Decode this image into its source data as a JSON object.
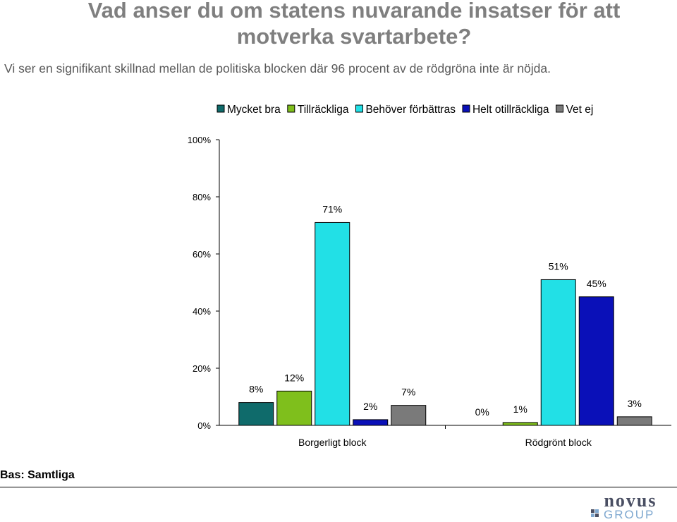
{
  "page": {
    "title": "Vad anser du om statens nuvarande insatser för att motverka svartarbete?",
    "subtitle": "Vi ser en signifikant skillnad mellan de politiska blocken där 96 procent av de rödgröna inte är nöjda.",
    "base": "Bas: Samtliga",
    "logo_text": [
      "novus",
      "GROUP"
    ]
  },
  "colors": {
    "Mycket bra": "#0f6b6b",
    "Tillräckliga": "#7fbf1c",
    "Behöver förbättras": "#22e0e6",
    "Helt otillräckliga": "#0a10b8",
    "Vet ej": "#7a7a7a"
  },
  "chart_data": {
    "type": "bar",
    "categories": [
      "Borgerligt block",
      "Rödgrönt block"
    ],
    "series": [
      {
        "name": "Mycket bra",
        "values": [
          8,
          0
        ]
      },
      {
        "name": "Tillräckliga",
        "values": [
          12,
          1
        ]
      },
      {
        "name": "Behöver förbättras",
        "values": [
          71,
          51
        ]
      },
      {
        "name": "Helt otillräckliga",
        "values": [
          2,
          45
        ]
      },
      {
        "name": "Vet ej",
        "values": [
          7,
          3
        ]
      }
    ],
    "value_labels": [
      [
        "8%",
        "12%",
        "71%",
        "2%",
        "7%"
      ],
      [
        "0%",
        "1%",
        "51%",
        "45%",
        "3%"
      ]
    ],
    "y_ticks": [
      "0%",
      "20%",
      "40%",
      "60%",
      "80%",
      "100%"
    ],
    "ylim": [
      0,
      100
    ],
    "legend_position": "top",
    "grid": false
  }
}
